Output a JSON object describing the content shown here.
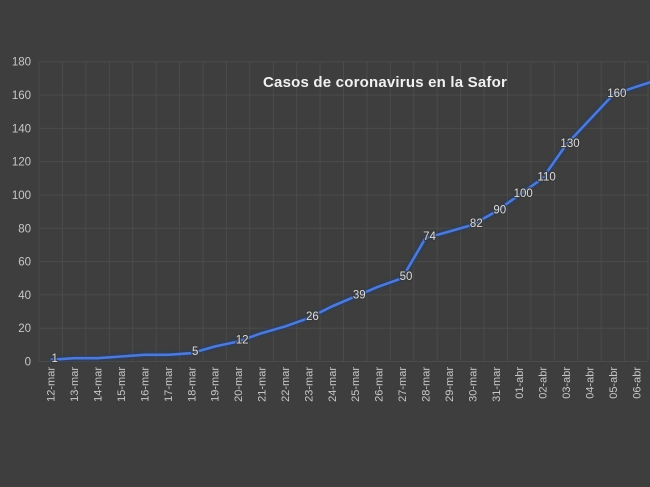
{
  "window": {
    "kind": "excel-style-line-chart-screenshot",
    "background_color": "#3e3e3e"
  },
  "chart_data": {
    "type": "line",
    "title": "Casos de coronavirus en la Safor",
    "xlabel": "",
    "ylabel": "",
    "categories": [
      "12-mar",
      "13-mar",
      "14-mar",
      "15-mar",
      "16-mar",
      "17-mar",
      "18-mar",
      "19-mar",
      "20-mar",
      "21-mar",
      "22-mar",
      "23-mar",
      "24-mar",
      "25-mar",
      "26-mar",
      "27-mar",
      "28-mar",
      "29-mar",
      "30-mar",
      "31-mar",
      "01-abr",
      "02-abr",
      "03-abr",
      "04-abr",
      "05-abr",
      "06-abr"
    ],
    "values": [
      1,
      2,
      2,
      3,
      4,
      4,
      5,
      9,
      12,
      17,
      21,
      26,
      33,
      39,
      45,
      50,
      74,
      78,
      82,
      90,
      100,
      110,
      130,
      145,
      160,
      165
    ],
    "point_labels": [
      "1",
      null,
      null,
      null,
      null,
      null,
      "5",
      null,
      "12",
      null,
      null,
      "26",
      null,
      "39",
      null,
      "50",
      "74",
      null,
      "82",
      "90",
      "100",
      "110",
      "130",
      null,
      "160",
      null
    ],
    "ylim": [
      0,
      180
    ],
    "yticks": [
      0,
      20,
      40,
      60,
      80,
      100,
      120,
      140,
      160,
      180
    ],
    "grid": true,
    "legend": false,
    "x_tick_rotation_deg": -90,
    "line_cut_off_at_right_edge": true,
    "value_at_right_edge": 168,
    "colors": {
      "background": "#3e3e3e",
      "gridline": "#4b4b4b",
      "axis_tick_text": "#c7c7c7",
      "title_text": "#f1f1f1",
      "series_line": "#4f79d2",
      "series_line_shadow": "#1f3c7c",
      "data_label_text": "#dcdcdc"
    }
  }
}
